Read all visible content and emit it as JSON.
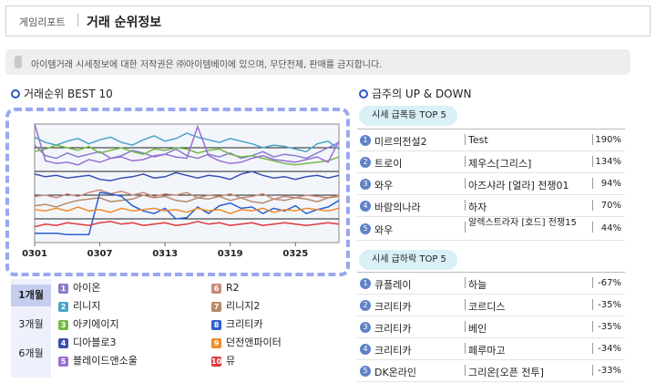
{
  "header": {
    "breadcrumb": "게임리포트",
    "title": "거래 순위정보"
  },
  "notice": "아이템거래 시세정보에 대한 저작권은 ㈜아이템베이에 있으며, 무단전제, 판매를 금지합니다.",
  "ranking": {
    "title": "거래순위 BEST 10",
    "periods": [
      {
        "label": "1개월",
        "active": true
      },
      {
        "label": "3개월",
        "active": false
      },
      {
        "label": "6개월",
        "active": false
      }
    ],
    "legend": [
      {
        "num": "1",
        "name": "아이온",
        "color": "#8a7bc8"
      },
      {
        "num": "2",
        "name": "리니지",
        "color": "#4aa3c7"
      },
      {
        "num": "3",
        "name": "아키에이지",
        "color": "#76b947"
      },
      {
        "num": "4",
        "name": "디아블로3",
        "color": "#3a4fb3"
      },
      {
        "num": "5",
        "name": "블레이드앤소울",
        "color": "#9a6fd3"
      },
      {
        "num": "6",
        "name": "R2",
        "color": "#c88a7a"
      },
      {
        "num": "7",
        "name": "리니지2",
        "color": "#b98a6a"
      },
      {
        "num": "8",
        "name": "크리티카",
        "color": "#2e5fd0"
      },
      {
        "num": "9",
        "name": "던전앤파이터",
        "color": "#f08a2b"
      },
      {
        "num": "10",
        "name": "뮤",
        "color": "#e03a3a"
      }
    ]
  },
  "chart_data": {
    "type": "line",
    "x": [
      "0301",
      "0302",
      "0303",
      "0304",
      "0305",
      "0306",
      "0307",
      "0308",
      "0309",
      "0310",
      "0311",
      "0312",
      "0313",
      "0314",
      "0315",
      "0316",
      "0317",
      "0318",
      "0319",
      "0320",
      "0321",
      "0322",
      "0323",
      "0324",
      "0325",
      "0326",
      "0327",
      "0328",
      "0329"
    ],
    "xticks": [
      "0301",
      "0307",
      "0313",
      "0319",
      "0325"
    ],
    "ylim": [
      10,
      1
    ],
    "grid": true,
    "series": [
      {
        "color": "#8a7bc8",
        "values": [
          2.6,
          3.4,
          3.6,
          3.2,
          3.5,
          3.3,
          3.1,
          3.6,
          3.4,
          3.0,
          3.2,
          3.5,
          3.3,
          2.9,
          3.4,
          3.6,
          3.3,
          3.5,
          3.2,
          3.6,
          3.4,
          3.1,
          3.5,
          3.3,
          3.4,
          3.6,
          3.2,
          2.8,
          2.4
        ]
      },
      {
        "color": "#4aa3c7",
        "values": [
          2.0,
          2.4,
          2.6,
          2.3,
          2.1,
          2.5,
          2.2,
          2.0,
          2.4,
          2.6,
          2.2,
          1.9,
          2.3,
          2.1,
          1.7,
          2.0,
          2.2,
          2.4,
          2.1,
          2.3,
          2.5,
          2.8,
          2.6,
          2.7,
          2.9,
          3.1,
          2.5,
          2.3,
          2.9
        ]
      },
      {
        "color": "#76b947",
        "values": [
          3.1,
          2.9,
          2.6,
          2.8,
          3.0,
          2.7,
          3.2,
          3.0,
          2.8,
          3.1,
          3.3,
          2.9,
          3.0,
          2.8,
          2.9,
          3.2,
          3.0,
          2.9,
          3.3,
          3.5,
          3.4,
          3.6,
          3.8,
          4.0,
          4.1,
          4.0,
          3.9,
          3.8,
          3.5
        ]
      },
      {
        "color": "#3a4fb3",
        "values": [
          4.8,
          5.0,
          4.9,
          5.1,
          5.0,
          4.9,
          5.2,
          5.3,
          5.1,
          5.0,
          4.8,
          5.1,
          5.0,
          4.7,
          4.9,
          5.1,
          4.9,
          5.0,
          5.2,
          4.8,
          4.6,
          4.9,
          5.1,
          5.0,
          5.2,
          5.0,
          4.9,
          5.1,
          4.9
        ]
      },
      {
        "color": "#9a6fd3",
        "values": [
          1.0,
          3.8,
          4.0,
          3.9,
          4.1,
          3.7,
          3.9,
          3.6,
          3.5,
          3.8,
          3.7,
          3.4,
          3.3,
          3.5,
          3.6,
          1.2,
          3.4,
          3.8,
          4.0,
          3.9,
          3.6,
          3.4,
          3.7,
          3.8,
          3.9,
          3.7,
          3.5,
          3.9,
          2.3
        ]
      },
      {
        "color": "#c88a7a",
        "values": [
          6.5,
          6.4,
          6.6,
          6.3,
          6.5,
          6.2,
          6.0,
          6.3,
          6.1,
          6.4,
          6.2,
          6.5,
          6.3,
          6.4,
          6.2,
          6.6,
          6.4,
          6.5,
          6.3,
          6.6,
          6.5,
          6.3,
          6.7,
          6.5,
          6.6,
          6.4,
          6.5,
          6.6,
          6.4
        ]
      },
      {
        "color": "#b98a6a",
        "values": [
          7.2,
          7.1,
          7.3,
          7.0,
          6.8,
          6.7,
          6.6,
          6.9,
          6.8,
          6.7,
          6.4,
          6.6,
          6.5,
          6.8,
          6.9,
          6.6,
          6.7,
          6.5,
          6.8,
          6.6,
          6.9,
          7.0,
          6.7,
          6.8,
          6.6,
          6.7,
          6.9,
          6.6,
          6.5
        ]
      },
      {
        "color": "#2e5fd0",
        "values": [
          9.3,
          9.3,
          9.3,
          9.4,
          9.4,
          9.4,
          6.2,
          6.3,
          6.5,
          7.2,
          7.6,
          7.8,
          7.4,
          8.2,
          8.1,
          7.3,
          7.8,
          7.2,
          7.0,
          7.4,
          7.3,
          7.8,
          7.4,
          7.6,
          7.2,
          7.8,
          7.5,
          7.3,
          6.8
        ]
      },
      {
        "color": "#f08a2b",
        "values": [
          7.5,
          7.6,
          7.4,
          7.6,
          7.3,
          7.6,
          7.5,
          7.7,
          7.4,
          7.6,
          7.5,
          7.4,
          7.6,
          7.5,
          7.7,
          7.4,
          7.6,
          7.5,
          7.8,
          7.5,
          7.6,
          7.4,
          7.7,
          7.5,
          7.6,
          7.4,
          7.5,
          7.6,
          7.4
        ]
      },
      {
        "color": "#e03a3a",
        "values": [
          8.8,
          8.6,
          8.7,
          8.5,
          8.6,
          8.7,
          8.5,
          8.4,
          8.6,
          8.5,
          8.7,
          8.6,
          8.5,
          8.7,
          8.6,
          8.4,
          8.6,
          8.5,
          8.7,
          8.6,
          8.5,
          8.7,
          8.6,
          8.5,
          8.6,
          8.7,
          8.6,
          8.5,
          8.6
        ]
      }
    ]
  },
  "updown": {
    "title": "금주의 UP & DOWN",
    "up_label": "시세 급폭등 TOP 5",
    "down_label": "시세 급하락 TOP 5",
    "up": [
      {
        "num": "1",
        "game": "미르의전설2",
        "server": "Test",
        "pct": "190%"
      },
      {
        "num": "2",
        "game": "트로이",
        "server": "제우스[그리스]",
        "pct": "134%"
      },
      {
        "num": "3",
        "game": "와우",
        "server": "아즈샤라 [얼라] 전쟁01",
        "pct": "94%"
      },
      {
        "num": "4",
        "game": "바람의나라",
        "server": "하자",
        "pct": "70%"
      },
      {
        "num": "5",
        "game": "와우",
        "server": "알렉스트라자 [호드] 전쟁15",
        "pct": "44%"
      }
    ],
    "down": [
      {
        "num": "1",
        "game": "큐플레이",
        "server": "하늘",
        "pct": "-67%"
      },
      {
        "num": "2",
        "game": "크리티카",
        "server": "코르디스",
        "pct": "-35%"
      },
      {
        "num": "3",
        "game": "크리티카",
        "server": "베인",
        "pct": "-35%"
      },
      {
        "num": "4",
        "game": "크리티카",
        "server": "페루마고",
        "pct": "-34%"
      },
      {
        "num": "5",
        "game": "DK온라인",
        "server": "그리온[오픈 전투]",
        "pct": "-33%"
      }
    ]
  }
}
